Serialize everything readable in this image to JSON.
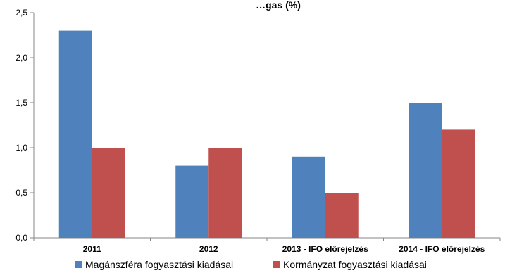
{
  "chart_data": {
    "type": "bar",
    "title": "…gas (%)",
    "categories": [
      "2011",
      "2012",
      "2013 - IFO előrejelzés",
      "2014 - IFO előrejelzés"
    ],
    "series": [
      {
        "name": "Magánszféra fogyasztási kiadásai",
        "values": [
          2.3,
          0.8,
          0.9,
          1.5
        ],
        "color": "#4F81BD"
      },
      {
        "name": "Kormányzat fogyasztási kiadásai",
        "values": [
          1.0,
          1.0,
          0.5,
          1.2
        ],
        "color": "#C0504D"
      }
    ],
    "yticks": [
      "0,0",
      "0,5",
      "1,0",
      "1,5",
      "2,0",
      "2,5"
    ],
    "ylim": [
      0,
      2.5
    ],
    "grid": false,
    "legend_position": "bottom"
  }
}
